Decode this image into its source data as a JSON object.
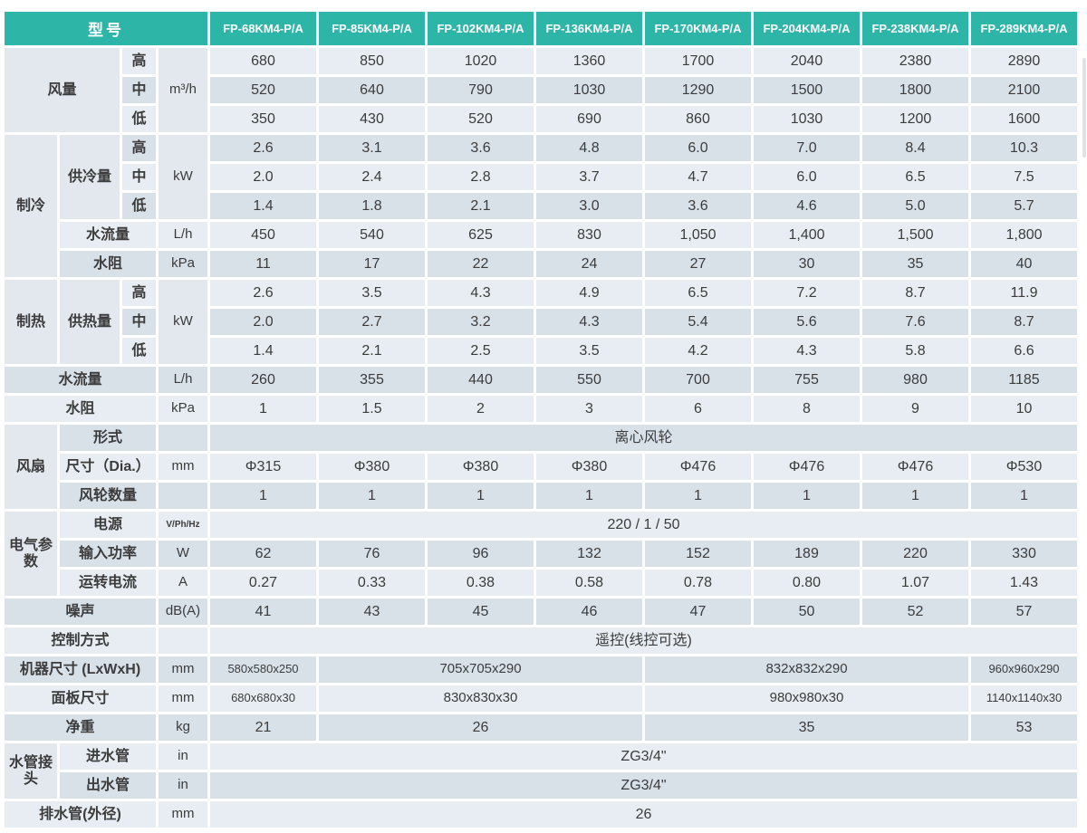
{
  "table": {
    "colors": {
      "header_bg": "#2db6a8",
      "header_text": "#ffffff",
      "row_light": "#e7edf2",
      "row_dark": "#d8e1e8",
      "merged_bg": "#e2e8ee",
      "text": "#3c3c3c",
      "page_bg": "#ffffff"
    },
    "header": {
      "corner_label": "型号",
      "models": [
        "FP-68KM4-P/A",
        "FP-85KM4-P/A",
        "FP-102KM4-P/A",
        "FP-136KM4-P/A",
        "FP-170KM4-P/A",
        "FP-204KM4-P/A",
        "FP-238KM4-P/A",
        "FP-289KM4-P/A"
      ]
    },
    "rows": [
      {
        "labels": [
          {
            "text": "风量",
            "span": 2,
            "rowspan": 3
          },
          {
            "text": "高",
            "span": 1
          }
        ],
        "unit": {
          "text": "m³/h",
          "rowspan": 3
        },
        "cells": [
          "680",
          "850",
          "1020",
          "1360",
          "1700",
          "2040",
          "2380",
          "2890"
        ]
      },
      {
        "labels": [
          {
            "text": "中",
            "span": 1
          }
        ],
        "unit": null,
        "cells": [
          "520",
          "640",
          "790",
          "1030",
          "1290",
          "1500",
          "1800",
          "2100"
        ]
      },
      {
        "labels": [
          {
            "text": "低",
            "span": 1
          }
        ],
        "unit": null,
        "cells": [
          "350",
          "430",
          "520",
          "690",
          "860",
          "1030",
          "1200",
          "1600"
        ]
      },
      {
        "labels": [
          {
            "text": "制冷",
            "span": 1,
            "rowspan": 5
          },
          {
            "text": "供冷量",
            "span": 1,
            "rowspan": 3
          },
          {
            "text": "高",
            "span": 1
          }
        ],
        "unit": {
          "text": "kW",
          "rowspan": 3
        },
        "cells": [
          "2.6",
          "3.1",
          "3.6",
          "4.8",
          "6.0",
          "7.0",
          "8.4",
          "10.3"
        ]
      },
      {
        "labels": [
          {
            "text": "中",
            "span": 1
          }
        ],
        "unit": null,
        "cells": [
          "2.0",
          "2.4",
          "2.8",
          "3.7",
          "4.7",
          "6.0",
          "6.5",
          "7.5"
        ]
      },
      {
        "labels": [
          {
            "text": "低",
            "span": 1
          }
        ],
        "unit": null,
        "cells": [
          "1.4",
          "1.8",
          "2.1",
          "3.0",
          "3.6",
          "4.6",
          "5.0",
          "5.7"
        ]
      },
      {
        "labels": [
          {
            "text": "水流量",
            "span": 2
          }
        ],
        "unit": {
          "text": "L/h"
        },
        "cells": [
          "450",
          "540",
          "625",
          "830",
          "1,050",
          "1,400",
          "1,500",
          "1,800"
        ]
      },
      {
        "labels": [
          {
            "text": "水阻",
            "span": 2
          }
        ],
        "unit": {
          "text": "kPa"
        },
        "cells": [
          "11",
          "17",
          "22",
          "24",
          "27",
          "30",
          "35",
          "40"
        ]
      },
      {
        "labels": [
          {
            "text": "制热",
            "span": 1,
            "rowspan": 3
          },
          {
            "text": "供热量",
            "span": 1,
            "rowspan": 3
          },
          {
            "text": "高",
            "span": 1
          }
        ],
        "unit": {
          "text": "kW",
          "rowspan": 3
        },
        "cells": [
          "2.6",
          "3.5",
          "4.3",
          "4.9",
          "6.5",
          "7.2",
          "8.7",
          "11.9"
        ]
      },
      {
        "labels": [
          {
            "text": "中",
            "span": 1
          }
        ],
        "unit": null,
        "cells": [
          "2.0",
          "2.7",
          "3.2",
          "4.3",
          "5.4",
          "5.6",
          "7.6",
          "8.7"
        ]
      },
      {
        "labels": [
          {
            "text": "低",
            "span": 1
          }
        ],
        "unit": null,
        "cells": [
          "1.4",
          "2.1",
          "2.5",
          "3.5",
          "4.2",
          "4.3",
          "5.8",
          "6.6"
        ]
      },
      {
        "labels": [
          {
            "text": "水流量",
            "span": 3
          }
        ],
        "unit": {
          "text": "L/h"
        },
        "cells": [
          "260",
          "355",
          "440",
          "550",
          "700",
          "755",
          "980",
          "1185"
        ]
      },
      {
        "labels": [
          {
            "text": "水阻",
            "span": 3
          }
        ],
        "unit": {
          "text": "kPa"
        },
        "cells": [
          "1",
          "1.5",
          "2",
          "3",
          "6",
          "8",
          "9",
          "10"
        ]
      },
      {
        "labels": [
          {
            "text": "风扇",
            "span": 1,
            "rowspan": 3
          },
          {
            "text": "形式",
            "span": 2
          }
        ],
        "unit": {
          "text": ""
        },
        "cells": [
          {
            "text": "离心风轮",
            "colspan": 8
          }
        ]
      },
      {
        "labels": [
          {
            "text": "尺寸（Dia.）",
            "span": 2
          }
        ],
        "unit": {
          "text": "mm"
        },
        "cells": [
          "Φ315",
          "Φ380",
          "Φ380",
          "Φ380",
          "Φ476",
          "Φ476",
          "Φ476",
          "Φ530"
        ]
      },
      {
        "labels": [
          {
            "text": "风轮数量",
            "span": 2
          }
        ],
        "unit": {
          "text": ""
        },
        "cells": [
          "1",
          "1",
          "1",
          "1",
          "1",
          "1",
          "1",
          "1"
        ]
      },
      {
        "labels": [
          {
            "text": "电气参数",
            "span": 1,
            "rowspan": 3
          },
          {
            "text": "电源",
            "span": 2
          }
        ],
        "unit": {
          "text": "V/Ph/Hz"
        },
        "cells": [
          {
            "text": "220 / 1 / 50",
            "colspan": 8
          }
        ]
      },
      {
        "labels": [
          {
            "text": "输入功率",
            "span": 2
          }
        ],
        "unit": {
          "text": "W"
        },
        "cells": [
          "62",
          "76",
          "96",
          "132",
          "152",
          "189",
          "220",
          "330"
        ]
      },
      {
        "labels": [
          {
            "text": "运转电流",
            "span": 2
          }
        ],
        "unit": {
          "text": "A"
        },
        "cells": [
          "0.27",
          "0.33",
          "0.38",
          "0.58",
          "0.78",
          "0.80",
          "1.07",
          "1.43"
        ]
      },
      {
        "labels": [
          {
            "text": "噪声",
            "span": 3
          }
        ],
        "unit": {
          "text": "dB(A)"
        },
        "cells": [
          "41",
          "43",
          "45",
          "46",
          "47",
          "50",
          "52",
          "57"
        ]
      },
      {
        "labels": [
          {
            "text": "控制方式",
            "span": 3
          }
        ],
        "unit": {
          "text": ""
        },
        "cells": [
          {
            "text": "遥控(线控可选)",
            "colspan": 8
          }
        ]
      },
      {
        "labels": [
          {
            "text": "机器尺寸 (LxWxH)",
            "span": 3
          }
        ],
        "unit": {
          "text": "mm"
        },
        "compact": true,
        "cells": [
          "580x580x250",
          {
            "text": "705x705x290",
            "colspan": 3
          },
          {
            "text": "832x832x290",
            "colspan": 3
          },
          "960x960x290"
        ]
      },
      {
        "labels": [
          {
            "text": "面板尺寸",
            "span": 3
          }
        ],
        "unit": {
          "text": "mm"
        },
        "compact": true,
        "cells": [
          "680x680x30",
          {
            "text": "830x830x30",
            "colspan": 3
          },
          {
            "text": "980x980x30",
            "colspan": 3
          },
          "1140x1140x30"
        ]
      },
      {
        "labels": [
          {
            "text": "净重",
            "span": 3
          }
        ],
        "unit": {
          "text": "kg"
        },
        "cells": [
          "21",
          {
            "text": "26",
            "colspan": 3
          },
          {
            "text": "35",
            "colspan": 3
          },
          "53"
        ]
      },
      {
        "labels": [
          {
            "text": "水管接头",
            "span": 1,
            "rowspan": 2
          },
          {
            "text": "进水管",
            "span": 2
          }
        ],
        "unit": {
          "text": "in"
        },
        "cells": [
          {
            "text": "ZG3/4\"",
            "colspan": 8
          }
        ]
      },
      {
        "labels": [
          {
            "text": "出水管",
            "span": 2
          }
        ],
        "unit": {
          "text": "in"
        },
        "cells": [
          {
            "text": "ZG3/4\"",
            "colspan": 8
          }
        ]
      },
      {
        "labels": [
          {
            "text": "排水管(外径)",
            "span": 3
          }
        ],
        "unit": {
          "text": "mm"
        },
        "cells": [
          {
            "text": "26",
            "colspan": 8
          }
        ]
      }
    ]
  }
}
